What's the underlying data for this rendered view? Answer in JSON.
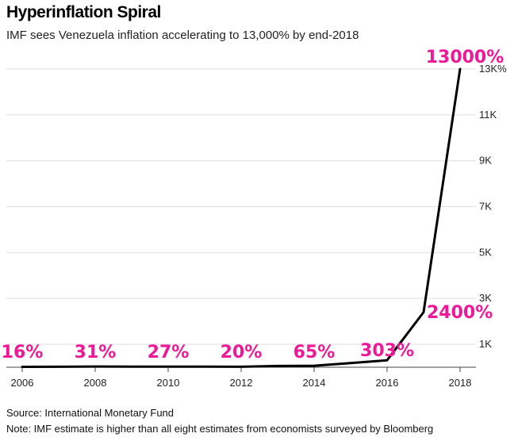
{
  "header": {
    "title": "Hyperinflation Spiral",
    "subtitle": "IMF sees Venezuela inflation accelerating to 13,000% by end-2018"
  },
  "footer": {
    "source": "Source: International Monetary Fund",
    "note": "Note: IMF estimate is higher than all eight estimates from economists surveyed by Bloomberg"
  },
  "colors": {
    "line": "#000000",
    "annotation": "#ee1899",
    "grid": "#dddddd",
    "axis": "#444444"
  },
  "chart_data": {
    "type": "line",
    "title": "Hyperinflation Spiral",
    "subtitle": "IMF sees Venezuela inflation accelerating to 13,000% by end-2018",
    "x": [
      2006,
      2007,
      2008,
      2009,
      2010,
      2011,
      2012,
      2013,
      2014,
      2015,
      2016,
      2017,
      2018
    ],
    "series": [
      {
        "values": [
          16,
          22,
          31,
          26,
          27,
          28,
          20,
          56,
          65,
          181,
          303,
          2400,
          13000
        ]
      }
    ],
    "xlim": [
      2006,
      2018
    ],
    "ylim": [
      0,
      13000
    ],
    "x_ticks": [
      2006,
      2008,
      2010,
      2012,
      2014,
      2016,
      2018
    ],
    "x_tick_labels": [
      "2006",
      "2008",
      "2010",
      "2012",
      "2014",
      "2016",
      "2018"
    ],
    "y_ticks": [
      1000,
      3000,
      5000,
      7000,
      9000,
      11000,
      13000
    ],
    "y_tick_labels": [
      "1K",
      "3K",
      "5K",
      "7K",
      "9K",
      "11K",
      "13K%"
    ],
    "y_axis_side": "right",
    "grid": true,
    "annotations": [
      {
        "text": "16%",
        "x": 2006
      },
      {
        "text": "31%",
        "x": 2008
      },
      {
        "text": "27%",
        "x": 2010
      },
      {
        "text": "20%",
        "x": 2012
      },
      {
        "text": "65%",
        "x": 2014
      },
      {
        "text": "303%",
        "x": 2016
      },
      {
        "text": "2400%",
        "x": 2017
      },
      {
        "text": "13000%",
        "x": 2018
      }
    ]
  }
}
